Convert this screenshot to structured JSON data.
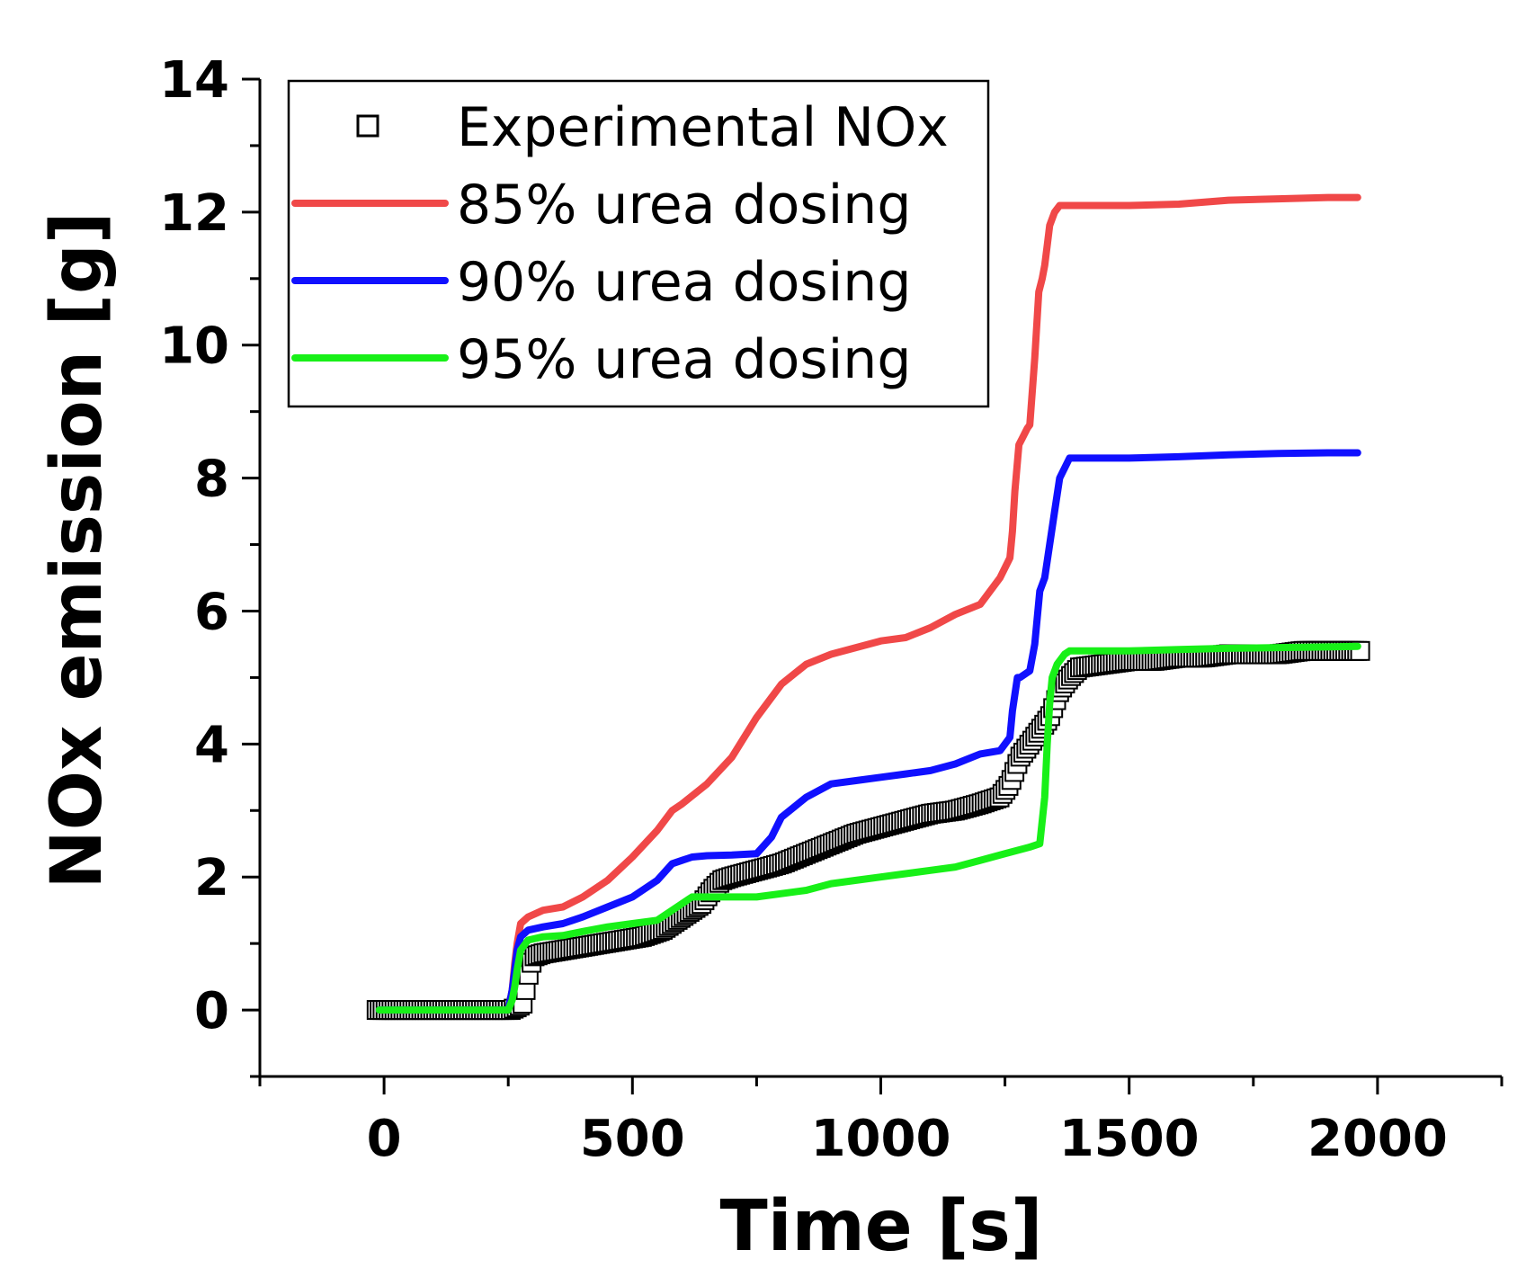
{
  "chart_data": {
    "type": "line",
    "title": "",
    "xlabel": "Time [s]",
    "ylabel": "NOx emission [g]",
    "xlim": [
      -250,
      2250
    ],
    "ylim": [
      -1,
      14
    ],
    "xticks": [
      0,
      500,
      1000,
      1500,
      2000
    ],
    "yticks": [
      0,
      2,
      4,
      6,
      8,
      10,
      12,
      14
    ],
    "grid": false,
    "legend_position": "top-left",
    "series": [
      {
        "name": "Experimental NOx",
        "style": "open-square-markers",
        "color": "#000000",
        "x": [
          -15,
          20,
          60,
          100,
          140,
          180,
          220,
          255,
          270,
          280,
          290,
          300,
          320,
          360,
          400,
          440,
          480,
          520,
          540,
          560,
          580,
          600,
          620,
          640,
          660,
          680,
          700,
          750,
          800,
          850,
          900,
          950,
          1000,
          1050,
          1100,
          1150,
          1200,
          1240,
          1260,
          1280,
          1300,
          1320,
          1340,
          1360,
          1380,
          1400,
          1450,
          1500,
          1550,
          1600,
          1650,
          1700,
          1750,
          1800,
          1850,
          1900,
          1950,
          1965
        ],
        "y": [
          0,
          0,
          0,
          0,
          0,
          0,
          0,
          0,
          0.05,
          0.1,
          0.5,
          0.8,
          0.85,
          0.9,
          0.95,
          1.0,
          1.05,
          1.1,
          1.15,
          1.2,
          1.3,
          1.4,
          1.5,
          1.6,
          1.8,
          1.95,
          2.0,
          2.1,
          2.2,
          2.35,
          2.5,
          2.65,
          2.75,
          2.85,
          2.95,
          3.0,
          3.1,
          3.2,
          3.4,
          3.8,
          4.0,
          4.2,
          4.4,
          4.8,
          5.0,
          5.15,
          5.2,
          5.25,
          5.25,
          5.3,
          5.3,
          5.35,
          5.35,
          5.35,
          5.4,
          5.4,
          5.4,
          5.4
        ]
      },
      {
        "name": "85% urea dosing",
        "style": "line",
        "color": "#f04848",
        "x": [
          -10,
          250,
          258,
          263,
          268,
          275,
          290,
          320,
          360,
          400,
          450,
          500,
          550,
          580,
          600,
          650,
          700,
          750,
          800,
          850,
          900,
          950,
          1000,
          1050,
          1100,
          1150,
          1200,
          1240,
          1260,
          1265,
          1270,
          1278,
          1285,
          1295,
          1300,
          1310,
          1318,
          1325,
          1330,
          1335,
          1340,
          1350,
          1360,
          1370,
          1380,
          1400,
          1500,
          1600,
          1700,
          1800,
          1900,
          1960
        ],
        "y": [
          0,
          0,
          0.3,
          0.7,
          1.0,
          1.3,
          1.4,
          1.5,
          1.55,
          1.7,
          1.95,
          2.3,
          2.7,
          3.0,
          3.1,
          3.4,
          3.8,
          4.4,
          4.9,
          5.2,
          5.35,
          5.45,
          5.55,
          5.6,
          5.75,
          5.95,
          6.1,
          6.5,
          6.8,
          7.2,
          7.8,
          8.5,
          8.6,
          8.75,
          8.8,
          9.8,
          10.8,
          11.0,
          11.2,
          11.5,
          11.8,
          12.0,
          12.1,
          12.1,
          12.1,
          12.1,
          12.1,
          12.12,
          12.18,
          12.2,
          12.22,
          12.22
        ]
      },
      {
        "name": "90% urea dosing",
        "style": "line",
        "color": "#1010ff",
        "x": [
          -10,
          250,
          258,
          263,
          268,
          275,
          290,
          320,
          360,
          400,
          450,
          500,
          550,
          580,
          600,
          620,
          650,
          700,
          750,
          780,
          800,
          850,
          900,
          950,
          1000,
          1050,
          1100,
          1150,
          1200,
          1240,
          1260,
          1265,
          1275,
          1280,
          1300,
          1310,
          1320,
          1330,
          1340,
          1350,
          1360,
          1380,
          1400,
          1500,
          1600,
          1700,
          1800,
          1900,
          1960
        ],
        "y": [
          0,
          0,
          0.3,
          0.6,
          0.9,
          1.1,
          1.2,
          1.25,
          1.3,
          1.4,
          1.55,
          1.7,
          1.95,
          2.2,
          2.25,
          2.3,
          2.32,
          2.33,
          2.35,
          2.6,
          2.9,
          3.2,
          3.4,
          3.45,
          3.5,
          3.55,
          3.6,
          3.7,
          3.85,
          3.9,
          4.1,
          4.5,
          5.0,
          5.0,
          5.1,
          5.5,
          6.3,
          6.5,
          7.0,
          7.5,
          8.0,
          8.3,
          8.3,
          8.3,
          8.32,
          8.35,
          8.37,
          8.38,
          8.38
        ]
      },
      {
        "name": "95% urea dosing",
        "style": "line",
        "color": "#18f018",
        "x": [
          -10,
          250,
          258,
          263,
          268,
          275,
          290,
          320,
          360,
          400,
          450,
          500,
          550,
          580,
          600,
          620,
          650,
          700,
          750,
          800,
          850,
          900,
          950,
          1000,
          1050,
          1100,
          1150,
          1200,
          1250,
          1300,
          1320,
          1330,
          1335,
          1340,
          1345,
          1355,
          1370,
          1380,
          1400,
          1500,
          1600,
          1700,
          1800,
          1900,
          1960
        ],
        "y": [
          0,
          0,
          0.15,
          0.35,
          0.6,
          0.9,
          1.05,
          1.1,
          1.12,
          1.18,
          1.25,
          1.3,
          1.35,
          1.5,
          1.6,
          1.7,
          1.7,
          1.7,
          1.7,
          1.75,
          1.8,
          1.9,
          1.95,
          2.0,
          2.05,
          2.1,
          2.15,
          2.25,
          2.35,
          2.45,
          2.5,
          3.2,
          4.0,
          4.6,
          5.0,
          5.2,
          5.35,
          5.4,
          5.4,
          5.4,
          5.42,
          5.44,
          5.45,
          5.46,
          5.47
        ]
      }
    ]
  }
}
